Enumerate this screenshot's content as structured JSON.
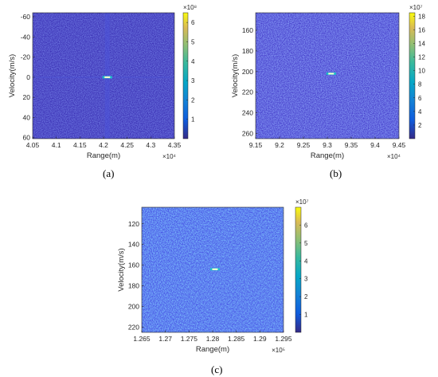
{
  "chart_data": [
    {
      "type": "heatmap",
      "caption": "(a)",
      "xlabel": "Range(m)",
      "ylabel": "Velocity(m/s)",
      "xlim": [
        40500,
        43500
      ],
      "ylim": [
        -64,
        61
      ],
      "y_reversed": true,
      "x_exponent_label": "×10⁴",
      "x_ticks": [
        40500,
        41000,
        41500,
        42000,
        42500,
        43000,
        43500
      ],
      "x_tick_labels": [
        "4.05",
        "4.1",
        "4.15",
        "4.2",
        "4.25",
        "4.3",
        "4.35"
      ],
      "y_ticks": [
        -60,
        -40,
        -20,
        0,
        20,
        40,
        60
      ],
      "y_tick_labels": [
        "-60",
        "-40",
        "-20",
        "0",
        "20",
        "40",
        "60"
      ],
      "colorbar": {
        "exponent_label": "×10⁸",
        "min": 0,
        "max": 650000000,
        "ticks": [
          100000000,
          200000000,
          300000000,
          400000000,
          500000000,
          600000000
        ],
        "tick_labels": [
          "1",
          "2",
          "3",
          "4",
          "5",
          "6"
        ]
      },
      "peak": {
        "x": 42080,
        "y": 0
      },
      "background_color": "#3a2fb4",
      "colormap": "parula"
    },
    {
      "type": "heatmap",
      "caption": "(b)",
      "xlabel": "Range(m)",
      "ylabel": "Velocity(m/s)",
      "xlim": [
        91500,
        94500
      ],
      "ylim": [
        143,
        265
      ],
      "y_reversed": true,
      "x_exponent_label": "×10⁴",
      "x_ticks": [
        91500,
        92000,
        92500,
        93000,
        93500,
        94000,
        94500
      ],
      "x_tick_labels": [
        "9.15",
        "9.2",
        "9.25",
        "9.3",
        "9.35",
        "9.4",
        "9.45"
      ],
      "y_ticks": [
        160,
        180,
        200,
        220,
        240,
        260
      ],
      "y_tick_labels": [
        "160",
        "180",
        "200",
        "220",
        "240",
        "260"
      ],
      "colorbar": {
        "exponent_label": "×10⁷",
        "min": 0,
        "max": 185000000,
        "ticks": [
          20000000,
          40000000,
          60000000,
          80000000,
          100000000,
          120000000,
          140000000,
          160000000,
          180000000
        ],
        "tick_labels": [
          "2",
          "4",
          "6",
          "8",
          "10",
          "12",
          "14",
          "16",
          "18"
        ]
      },
      "peak": {
        "x": 93080,
        "y": 202
      },
      "background_color": "#3f34c6",
      "colormap": "parula"
    },
    {
      "type": "heatmap",
      "caption": "(c)",
      "xlabel": "Range(m)",
      "ylabel": "Velocity(m/s)",
      "xlim": [
        126500,
        129500
      ],
      "ylim": [
        104,
        225
      ],
      "y_reversed": true,
      "x_exponent_label": "×10⁵",
      "x_ticks": [
        126500,
        127000,
        127500,
        128000,
        128500,
        129000,
        129500
      ],
      "x_tick_labels": [
        "1.265",
        "1.27",
        "1.275",
        "1.28",
        "1.285",
        "1.29",
        "1.295"
      ],
      "y_ticks": [
        120,
        140,
        160,
        180,
        200,
        220
      ],
      "y_tick_labels": [
        "120",
        "140",
        "160",
        "180",
        "200",
        "220"
      ],
      "colorbar": {
        "exponent_label": "×10⁷",
        "min": 0,
        "max": 70000000,
        "ticks": [
          10000000,
          20000000,
          30000000,
          40000000,
          50000000,
          60000000
        ],
        "tick_labels": [
          "1",
          "2",
          "3",
          "4",
          "5",
          "6"
        ]
      },
      "peak": {
        "x": 128050,
        "y": 164
      },
      "background_color": "#3e3fe0",
      "colormap": "parula"
    }
  ]
}
